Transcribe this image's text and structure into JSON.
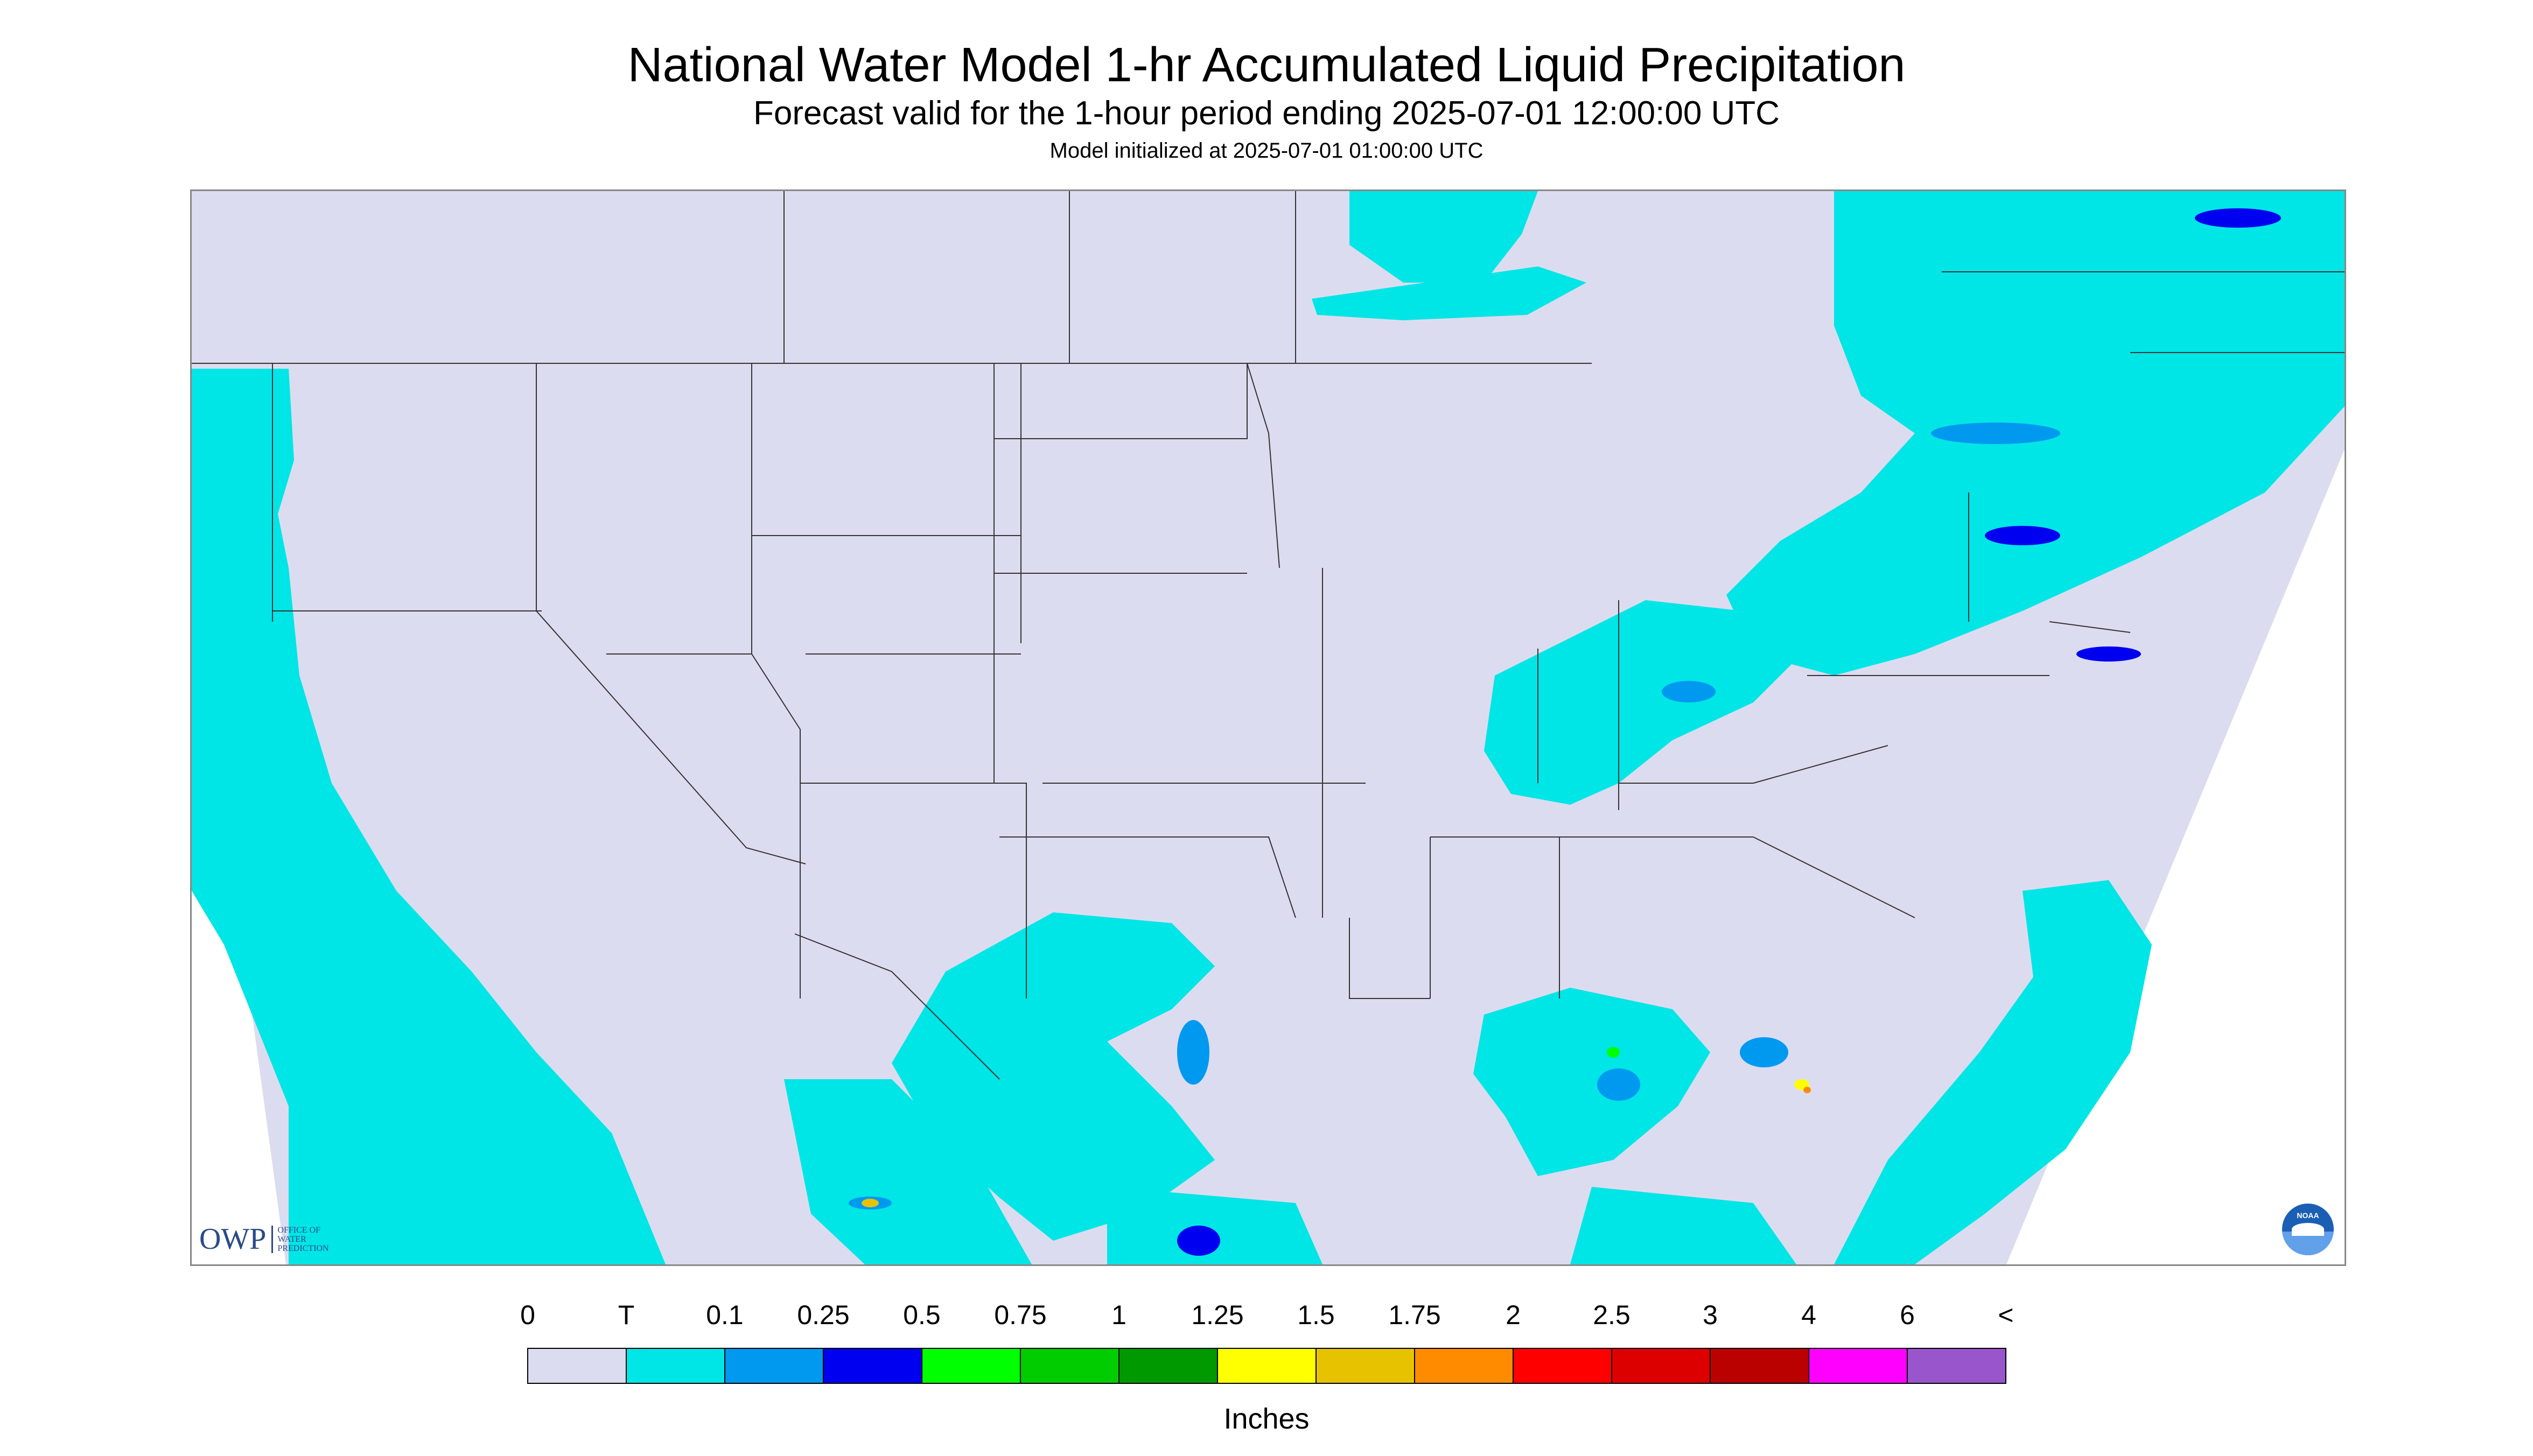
{
  "header": {
    "title": "National Water Model 1-hr Accumulated Liquid Precipitation",
    "subtitle": "Forecast valid for the 1-hour period ending 2025-07-01 12:00:00 UTC",
    "init_text": "Model initialized at 2025-07-01 01:00:00 UTC"
  },
  "logos": {
    "owp_text": "OWP",
    "owp_lines": [
      "OFFICE OF",
      "WATER",
      "PREDICTION"
    ],
    "noaa_text": "NOAA"
  },
  "colors": {
    "land": "#dcdcf0",
    "outside": "#ffffff",
    "boundary": "#333333",
    "border": "#888888"
  },
  "legend": {
    "units_label": "Inches",
    "tick_labels": [
      "0",
      "T",
      "0.1",
      "0.25",
      "0.5",
      "0.75",
      "1",
      "1.25",
      "1.5",
      "1.75",
      "2",
      "2.5",
      "3",
      "4",
      "6",
      "<"
    ],
    "bins": [
      {
        "color": "#dcdcf0"
      },
      {
        "color": "#00e5e5"
      },
      {
        "color": "#0099f0"
      },
      {
        "color": "#0000f0"
      },
      {
        "color": "#00ff00"
      },
      {
        "color": "#00cc00"
      },
      {
        "color": "#009900"
      },
      {
        "color": "#ffff00"
      },
      {
        "color": "#e6c200"
      },
      {
        "color": "#ff8c00"
      },
      {
        "color": "#ff0000"
      },
      {
        "color": "#dd0000"
      },
      {
        "color": "#bb0000"
      },
      {
        "color": "#ff00ff"
      },
      {
        "color": "#9955cc"
      }
    ]
  }
}
